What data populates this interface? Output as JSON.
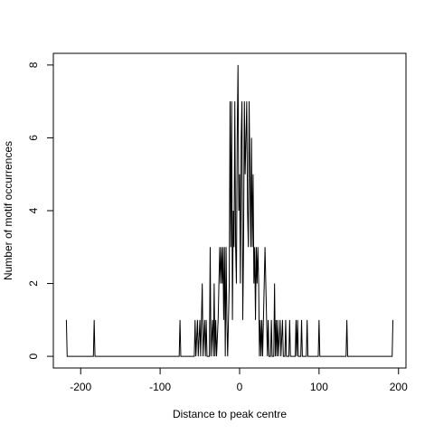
{
  "chart_data": {
    "type": "line",
    "x_label": "Distance to peak centre",
    "y_label": "Number of motif occurrences",
    "x": [
      -218,
      -217,
      -184,
      -183,
      -182,
      -76,
      -75,
      -74,
      -57,
      -56,
      -55,
      -53,
      -52,
      -50,
      -49,
      -47,
      -46,
      -44,
      -43,
      -42,
      -41,
      -38,
      -37,
      -36,
      -34,
      -33,
      -32,
      -31,
      -30,
      -29,
      -27,
      -26,
      -25,
      -24,
      -23,
      -22,
      -21,
      -20,
      -19,
      -18,
      -17,
      -16,
      -15,
      -14,
      -13,
      -12,
      -11,
      -10,
      -9,
      -8,
      -7,
      -6,
      -5,
      -4,
      -3,
      -2,
      -1,
      0,
      1,
      2,
      3,
      4,
      5,
      6,
      7,
      8,
      9,
      10,
      11,
      12,
      13,
      14,
      15,
      16,
      17,
      18,
      19,
      20,
      21,
      22,
      23,
      24,
      25,
      26,
      27,
      28,
      29,
      30,
      31,
      32,
      33,
      34,
      35,
      36,
      37,
      39,
      40,
      41,
      43,
      44,
      45,
      46,
      47,
      48,
      49,
      51,
      52,
      54,
      55,
      57,
      58,
      59,
      62,
      63,
      64,
      70,
      71,
      72,
      73,
      74,
      77,
      78,
      79,
      84,
      85,
      86,
      99,
      100,
      101,
      134,
      135,
      136,
      192,
      193
    ],
    "series": [
      {
        "name": "occurrences",
        "color": "#000000",
        "values": [
          1,
          0,
          0,
          1,
          0,
          0,
          1,
          0,
          0,
          1,
          0,
          1,
          0,
          1,
          0,
          2,
          0,
          1,
          0,
          1,
          0,
          0,
          3,
          0,
          1,
          0,
          2,
          0,
          1,
          0,
          1,
          2,
          3,
          2,
          3,
          2,
          3,
          1,
          3,
          0,
          3,
          1,
          0,
          1,
          2,
          7,
          3,
          7,
          1,
          4,
          3,
          7,
          3,
          2,
          6,
          8,
          4,
          5,
          2,
          6,
          7,
          1,
          3,
          7,
          5,
          6,
          7,
          4,
          3,
          7,
          5,
          3,
          6,
          3,
          5,
          2,
          3,
          1,
          3,
          2,
          3,
          2,
          0,
          1,
          0,
          1,
          0,
          1,
          2,
          3,
          2,
          1,
          0,
          1,
          0,
          0,
          1,
          0,
          0,
          2,
          0,
          1,
          0,
          1,
          0,
          1,
          0,
          1,
          0,
          0,
          1,
          0,
          0,
          1,
          0,
          0,
          1,
          0,
          1,
          0,
          0,
          1,
          0,
          0,
          1,
          0,
          0,
          1,
          0,
          0,
          1,
          0,
          0,
          1
        ]
      }
    ],
    "xlim": [
      -234.4,
      209.4
    ],
    "ylim": [
      -0.32,
      8.32
    ],
    "xticks": [
      -200,
      -100,
      0,
      100,
      200
    ],
    "yticks": [
      0,
      2,
      4,
      6,
      8
    ]
  }
}
